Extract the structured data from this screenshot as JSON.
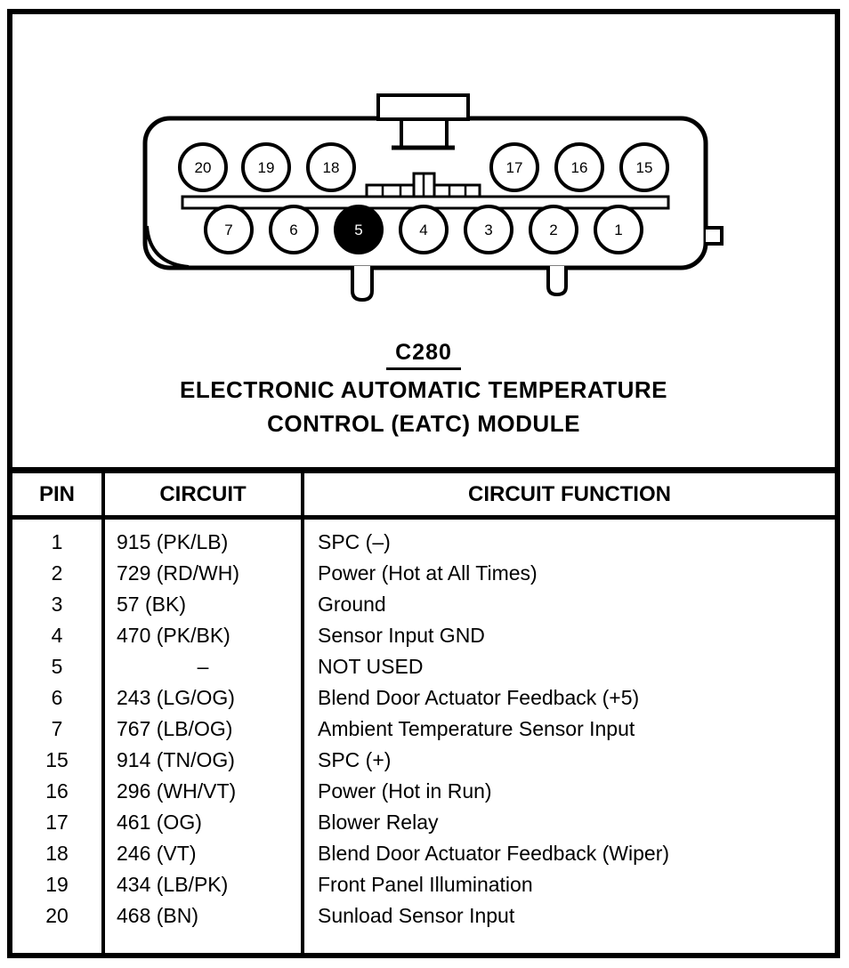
{
  "caption": {
    "connector_id": "C280",
    "line1": "ELECTRONIC AUTOMATIC TEMPERATURE",
    "line2": "CONTROL (EATC) MODULE"
  },
  "connector": {
    "top_pins": [
      {
        "label": "20"
      },
      {
        "label": "19"
      },
      {
        "label": "18"
      },
      {
        "label": "17"
      },
      {
        "label": "16"
      },
      {
        "label": "15"
      }
    ],
    "bottom_pins": [
      {
        "label": "7"
      },
      {
        "label": "6"
      },
      {
        "label": "5",
        "filled": true
      },
      {
        "label": "4"
      },
      {
        "label": "3"
      },
      {
        "label": "2"
      },
      {
        "label": "1"
      }
    ]
  },
  "table": {
    "headers": [
      "PIN",
      "CIRCUIT",
      "CIRCUIT FUNCTION"
    ],
    "rows": [
      {
        "pin": "1",
        "circuit": "915 (PK/LB)",
        "function": "SPC (–)"
      },
      {
        "pin": "2",
        "circuit": "729 (RD/WH)",
        "function": "Power (Hot at All Times)"
      },
      {
        "pin": "3",
        "circuit": "57 (BK)",
        "function": "Ground"
      },
      {
        "pin": "4",
        "circuit": "470 (PK/BK)",
        "function": "Sensor Input GND"
      },
      {
        "pin": "5",
        "circuit": "–",
        "function": "NOT USED"
      },
      {
        "pin": "6",
        "circuit": "243 (LG/OG)",
        "function": "Blend Door Actuator Feedback (+5)"
      },
      {
        "pin": "7",
        "circuit": "767 (LB/OG)",
        "function": "Ambient Temperature Sensor Input"
      },
      {
        "pin": "15",
        "circuit": "914 (TN/OG)",
        "function": "SPC (+)"
      },
      {
        "pin": "16",
        "circuit": "296 (WH/VT)",
        "function": "Power (Hot in Run)"
      },
      {
        "pin": "17",
        "circuit": "461 (OG)",
        "function": "Blower Relay"
      },
      {
        "pin": "18",
        "circuit": "246 (VT)",
        "function": "Blend Door Actuator Feedback (Wiper)"
      },
      {
        "pin": "19",
        "circuit": "434 (LB/PK)",
        "function": "Front Panel Illumination"
      },
      {
        "pin": "20",
        "circuit": "468 (BN)",
        "function": "Sunload Sensor Input"
      }
    ]
  },
  "colors": {
    "ink": "#000000",
    "paper": "#ffffff"
  }
}
